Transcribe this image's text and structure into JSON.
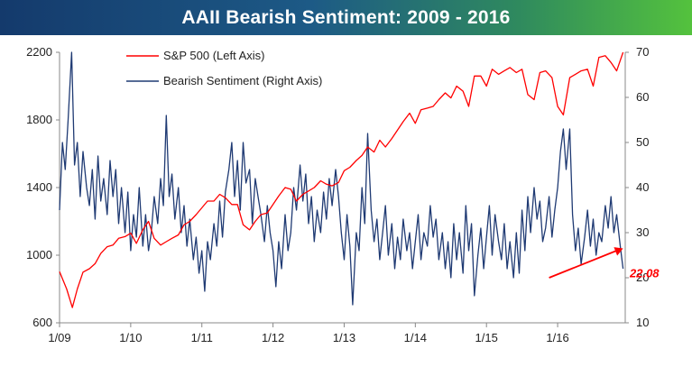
{
  "chart_data": {
    "type": "line",
    "title": "AAII Bearish Sentiment: 2009 - 2016",
    "x_tick_labels": [
      "1/09",
      "1/10",
      "1/11",
      "1/12",
      "1/13",
      "1/14",
      "1/15",
      "1/16"
    ],
    "x_range": [
      "1/09",
      "12/16"
    ],
    "y_left": {
      "ticks": [
        600,
        1000,
        1400,
        1800,
        2200
      ],
      "range": [
        600,
        2200
      ],
      "label": ""
    },
    "y_right": {
      "ticks": [
        10,
        20,
        30,
        40,
        50,
        60,
        70
      ],
      "range": [
        10,
        70
      ],
      "label": ""
    },
    "legend_position": "top-left",
    "grid": false,
    "series": [
      {
        "name": "S&P 500 (Left Axis)",
        "axis": "left",
        "color": "#ff0000",
        "points": [
          [
            2009.0,
            903
          ],
          [
            2009.1,
            800
          ],
          [
            2009.18,
            690
          ],
          [
            2009.25,
            800
          ],
          [
            2009.33,
            900
          ],
          [
            2009.42,
            920
          ],
          [
            2009.5,
            950
          ],
          [
            2009.58,
            1010
          ],
          [
            2009.67,
            1050
          ],
          [
            2009.75,
            1060
          ],
          [
            2009.83,
            1100
          ],
          [
            2009.92,
            1110
          ],
          [
            2010.0,
            1130
          ],
          [
            2010.08,
            1070
          ],
          [
            2010.17,
            1150
          ],
          [
            2010.25,
            1200
          ],
          [
            2010.33,
            1100
          ],
          [
            2010.42,
            1060
          ],
          [
            2010.5,
            1080
          ],
          [
            2010.58,
            1100
          ],
          [
            2010.67,
            1120
          ],
          [
            2010.75,
            1180
          ],
          [
            2010.83,
            1200
          ],
          [
            2010.92,
            1240
          ],
          [
            2011.0,
            1280
          ],
          [
            2011.08,
            1320
          ],
          [
            2011.17,
            1320
          ],
          [
            2011.25,
            1360
          ],
          [
            2011.33,
            1340
          ],
          [
            2011.42,
            1300
          ],
          [
            2011.5,
            1300
          ],
          [
            2011.58,
            1180
          ],
          [
            2011.67,
            1150
          ],
          [
            2011.75,
            1200
          ],
          [
            2011.83,
            1240
          ],
          [
            2011.92,
            1250
          ],
          [
            2012.0,
            1300
          ],
          [
            2012.08,
            1350
          ],
          [
            2012.17,
            1400
          ],
          [
            2012.25,
            1390
          ],
          [
            2012.33,
            1320
          ],
          [
            2012.42,
            1360
          ],
          [
            2012.5,
            1380
          ],
          [
            2012.58,
            1400
          ],
          [
            2012.67,
            1440
          ],
          [
            2012.75,
            1420
          ],
          [
            2012.83,
            1410
          ],
          [
            2012.92,
            1430
          ],
          [
            2013.0,
            1500
          ],
          [
            2013.08,
            1520
          ],
          [
            2013.17,
            1560
          ],
          [
            2013.25,
            1590
          ],
          [
            2013.33,
            1640
          ],
          [
            2013.42,
            1610
          ],
          [
            2013.5,
            1680
          ],
          [
            2013.58,
            1640
          ],
          [
            2013.67,
            1690
          ],
          [
            2013.75,
            1740
          ],
          [
            2013.83,
            1790
          ],
          [
            2013.92,
            1840
          ],
          [
            2014.0,
            1780
          ],
          [
            2014.08,
            1860
          ],
          [
            2014.17,
            1870
          ],
          [
            2014.25,
            1880
          ],
          [
            2014.33,
            1920
          ],
          [
            2014.42,
            1960
          ],
          [
            2014.5,
            1930
          ],
          [
            2014.58,
            2000
          ],
          [
            2014.67,
            1970
          ],
          [
            2014.75,
            1880
          ],
          [
            2014.83,
            2060
          ],
          [
            2014.92,
            2060
          ],
          [
            2015.0,
            2000
          ],
          [
            2015.08,
            2100
          ],
          [
            2015.17,
            2070
          ],
          [
            2015.25,
            2090
          ],
          [
            2015.33,
            2110
          ],
          [
            2015.42,
            2080
          ],
          [
            2015.5,
            2100
          ],
          [
            2015.58,
            1950
          ],
          [
            2015.67,
            1920
          ],
          [
            2015.75,
            2080
          ],
          [
            2015.83,
            2090
          ],
          [
            2015.92,
            2050
          ],
          [
            2016.0,
            1880
          ],
          [
            2016.08,
            1830
          ],
          [
            2016.17,
            2050
          ],
          [
            2016.25,
            2070
          ],
          [
            2016.33,
            2090
          ],
          [
            2016.42,
            2100
          ],
          [
            2016.5,
            2000
          ],
          [
            2016.58,
            2170
          ],
          [
            2016.67,
            2180
          ],
          [
            2016.75,
            2140
          ],
          [
            2016.83,
            2090
          ],
          [
            2016.92,
            2200
          ]
        ]
      },
      {
        "name": "Bearish Sentiment (Right Axis)",
        "axis": "right",
        "color": "#1f3a73",
        "points": [
          [
            2009.0,
            35
          ],
          [
            2009.04,
            50
          ],
          [
            2009.08,
            44
          ],
          [
            2009.12,
            55
          ],
          [
            2009.17,
            70
          ],
          [
            2009.21,
            45
          ],
          [
            2009.25,
            50
          ],
          [
            2009.29,
            38
          ],
          [
            2009.33,
            48
          ],
          [
            2009.38,
            40
          ],
          [
            2009.42,
            36
          ],
          [
            2009.46,
            44
          ],
          [
            2009.5,
            33
          ],
          [
            2009.54,
            47
          ],
          [
            2009.58,
            37
          ],
          [
            2009.62,
            42
          ],
          [
            2009.67,
            34
          ],
          [
            2009.71,
            46
          ],
          [
            2009.75,
            38
          ],
          [
            2009.79,
            44
          ],
          [
            2009.83,
            32
          ],
          [
            2009.87,
            40
          ],
          [
            2009.92,
            30
          ],
          [
            2009.96,
            39
          ],
          [
            2010.0,
            26
          ],
          [
            2010.04,
            34
          ],
          [
            2010.08,
            29
          ],
          [
            2010.12,
            40
          ],
          [
            2010.17,
            27
          ],
          [
            2010.21,
            34
          ],
          [
            2010.25,
            26
          ],
          [
            2010.29,
            30
          ],
          [
            2010.33,
            38
          ],
          [
            2010.38,
            32
          ],
          [
            2010.42,
            42
          ],
          [
            2010.46,
            36
          ],
          [
            2010.5,
            56
          ],
          [
            2010.54,
            38
          ],
          [
            2010.58,
            43
          ],
          [
            2010.62,
            33
          ],
          [
            2010.67,
            40
          ],
          [
            2010.71,
            30
          ],
          [
            2010.75,
            36
          ],
          [
            2010.79,
            27
          ],
          [
            2010.83,
            33
          ],
          [
            2010.88,
            24
          ],
          [
            2010.92,
            29
          ],
          [
            2010.96,
            21
          ],
          [
            2011.0,
            26
          ],
          [
            2011.04,
            17
          ],
          [
            2011.08,
            28
          ],
          [
            2011.12,
            24
          ],
          [
            2011.17,
            32
          ],
          [
            2011.21,
            27
          ],
          [
            2011.25,
            37
          ],
          [
            2011.29,
            29
          ],
          [
            2011.33,
            39
          ],
          [
            2011.38,
            44
          ],
          [
            2011.42,
            50
          ],
          [
            2011.46,
            38
          ],
          [
            2011.5,
            46
          ],
          [
            2011.54,
            35
          ],
          [
            2011.58,
            50
          ],
          [
            2011.62,
            41
          ],
          [
            2011.67,
            44
          ],
          [
            2011.71,
            32
          ],
          [
            2011.75,
            42
          ],
          [
            2011.79,
            38
          ],
          [
            2011.83,
            34
          ],
          [
            2011.88,
            28
          ],
          [
            2011.92,
            36
          ],
          [
            2011.96,
            30
          ],
          [
            2012.0,
            26
          ],
          [
            2012.04,
            18
          ],
          [
            2012.08,
            28
          ],
          [
            2012.12,
            22
          ],
          [
            2012.17,
            34
          ],
          [
            2012.21,
            26
          ],
          [
            2012.25,
            30
          ],
          [
            2012.29,
            40
          ],
          [
            2012.33,
            35
          ],
          [
            2012.38,
            45
          ],
          [
            2012.42,
            37
          ],
          [
            2012.46,
            43
          ],
          [
            2012.5,
            32
          ],
          [
            2012.54,
            38
          ],
          [
            2012.58,
            28
          ],
          [
            2012.62,
            35
          ],
          [
            2012.67,
            30
          ],
          [
            2012.71,
            39
          ],
          [
            2012.75,
            33
          ],
          [
            2012.79,
            42
          ],
          [
            2012.83,
            36
          ],
          [
            2012.88,
            44
          ],
          [
            2012.92,
            38
          ],
          [
            2012.96,
            30
          ],
          [
            2013.0,
            24
          ],
          [
            2013.04,
            34
          ],
          [
            2013.08,
            27
          ],
          [
            2013.12,
            14
          ],
          [
            2013.17,
            30
          ],
          [
            2013.21,
            26
          ],
          [
            2013.25,
            40
          ],
          [
            2013.29,
            32
          ],
          [
            2013.33,
            52
          ],
          [
            2013.38,
            35
          ],
          [
            2013.42,
            28
          ],
          [
            2013.46,
            33
          ],
          [
            2013.5,
            24
          ],
          [
            2013.54,
            30
          ],
          [
            2013.58,
            36
          ],
          [
            2013.62,
            25
          ],
          [
            2013.67,
            32
          ],
          [
            2013.71,
            22
          ],
          [
            2013.75,
            29
          ],
          [
            2013.79,
            24
          ],
          [
            2013.83,
            33
          ],
          [
            2013.88,
            26
          ],
          [
            2013.92,
            30
          ],
          [
            2013.96,
            22
          ],
          [
            2014.0,
            28
          ],
          [
            2014.04,
            34
          ],
          [
            2014.08,
            24
          ],
          [
            2014.12,
            30
          ],
          [
            2014.17,
            27
          ],
          [
            2014.21,
            36
          ],
          [
            2014.25,
            29
          ],
          [
            2014.29,
            33
          ],
          [
            2014.33,
            24
          ],
          [
            2014.38,
            30
          ],
          [
            2014.42,
            22
          ],
          [
            2014.46,
            28
          ],
          [
            2014.5,
            20
          ],
          [
            2014.54,
            32
          ],
          [
            2014.58,
            24
          ],
          [
            2014.62,
            30
          ],
          [
            2014.67,
            21
          ],
          [
            2014.71,
            36
          ],
          [
            2014.75,
            26
          ],
          [
            2014.79,
            32
          ],
          [
            2014.83,
            16
          ],
          [
            2014.88,
            25
          ],
          [
            2014.92,
            31
          ],
          [
            2014.96,
            22
          ],
          [
            2015.0,
            29
          ],
          [
            2015.04,
            36
          ],
          [
            2015.08,
            25
          ],
          [
            2015.12,
            34
          ],
          [
            2015.17,
            28
          ],
          [
            2015.21,
            24
          ],
          [
            2015.25,
            32
          ],
          [
            2015.29,
            22
          ],
          [
            2015.33,
            28
          ],
          [
            2015.38,
            20
          ],
          [
            2015.42,
            30
          ],
          [
            2015.46,
            21
          ],
          [
            2015.5,
            35
          ],
          [
            2015.54,
            26
          ],
          [
            2015.58,
            38
          ],
          [
            2015.62,
            30
          ],
          [
            2015.67,
            40
          ],
          [
            2015.71,
            33
          ],
          [
            2015.75,
            37
          ],
          [
            2015.79,
            28
          ],
          [
            2015.83,
            31
          ],
          [
            2015.88,
            38
          ],
          [
            2015.92,
            29
          ],
          [
            2015.96,
            35
          ],
          [
            2016.0,
            40
          ],
          [
            2016.04,
            48
          ],
          [
            2016.08,
            53
          ],
          [
            2016.12,
            44
          ],
          [
            2016.17,
            53
          ],
          [
            2016.21,
            34
          ],
          [
            2016.25,
            26
          ],
          [
            2016.29,
            31
          ],
          [
            2016.33,
            23
          ],
          [
            2016.38,
            29
          ],
          [
            2016.42,
            35
          ],
          [
            2016.46,
            27
          ],
          [
            2016.5,
            33
          ],
          [
            2016.54,
            25
          ],
          [
            2016.58,
            30
          ],
          [
            2016.62,
            28
          ],
          [
            2016.67,
            36
          ],
          [
            2016.71,
            31
          ],
          [
            2016.75,
            38
          ],
          [
            2016.79,
            30
          ],
          [
            2016.83,
            34
          ],
          [
            2016.88,
            27
          ],
          [
            2016.92,
            22
          ]
        ]
      }
    ],
    "annotation": {
      "text": "22.08",
      "color": "#ff0000",
      "arrow_from": [
        2015.88,
        20
      ],
      "arrow_to": [
        2016.92,
        26.5
      ]
    }
  }
}
